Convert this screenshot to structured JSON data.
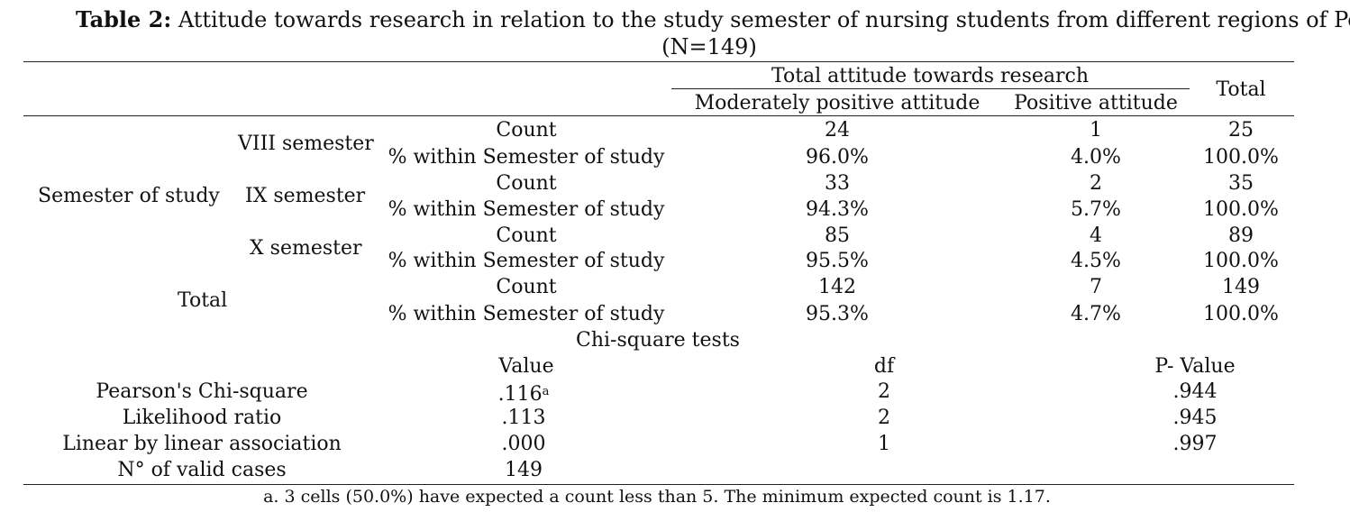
{
  "caption": {
    "label": "Table 2:",
    "text": "Attitude towards research in relation to the study semester of nursing students from different regions of Peru",
    "n": "(N=149)"
  },
  "crosstab": {
    "header_group": "Total attitude towards research",
    "col_moderate": "Moderately positive attitude",
    "col_positive": "Positive attitude",
    "col_total": "Total",
    "row_group": "Semester of study",
    "rows": [
      {
        "semester": "VIII semester",
        "count_label": "Count",
        "count": [
          "24",
          "1",
          "25"
        ],
        "pct_label": "% within Semester of study",
        "pct": [
          "96.0%",
          "4.0%",
          "100.0%"
        ]
      },
      {
        "semester": "IX semester",
        "count_label": "Count",
        "count": [
          "33",
          "2",
          "35"
        ],
        "pct_label": "% within Semester of study",
        "pct": [
          "94.3%",
          "5.7%",
          "100.0%"
        ]
      },
      {
        "semester": "X semester",
        "count_label": "Count",
        "count": [
          "85",
          "4",
          "89"
        ],
        "pct_label": "% within Semester of study",
        "pct": [
          "95.5%",
          "4.5%",
          "100.0%"
        ]
      }
    ],
    "total": {
      "label": "Total",
      "count_label": "Count",
      "count": [
        "142",
        "7",
        "149"
      ],
      "pct_label": "% within Semester of study",
      "pct": [
        "95.3%",
        "4.7%",
        "100.0%"
      ]
    }
  },
  "chi": {
    "title": "Chi-square tests",
    "h_value": "Value",
    "h_df": "df",
    "h_p": "P- Value",
    "rows": [
      {
        "label": "Pearson's Chi-square",
        "value": ".116",
        "sup": "a",
        "df": "2",
        "p": ".944"
      },
      {
        "label": "Likelihood ratio",
        "value": ".113",
        "df": "2",
        "p": ".945"
      },
      {
        "label": "Linear by linear association",
        "value": ".000",
        "df": "1",
        "p": ".997"
      },
      {
        "label": "N° of valid cases",
        "value": "149"
      }
    ]
  },
  "footnote": "a. 3 cells (50.0%) have expected a count less than 5. The minimum expected count is 1.17."
}
